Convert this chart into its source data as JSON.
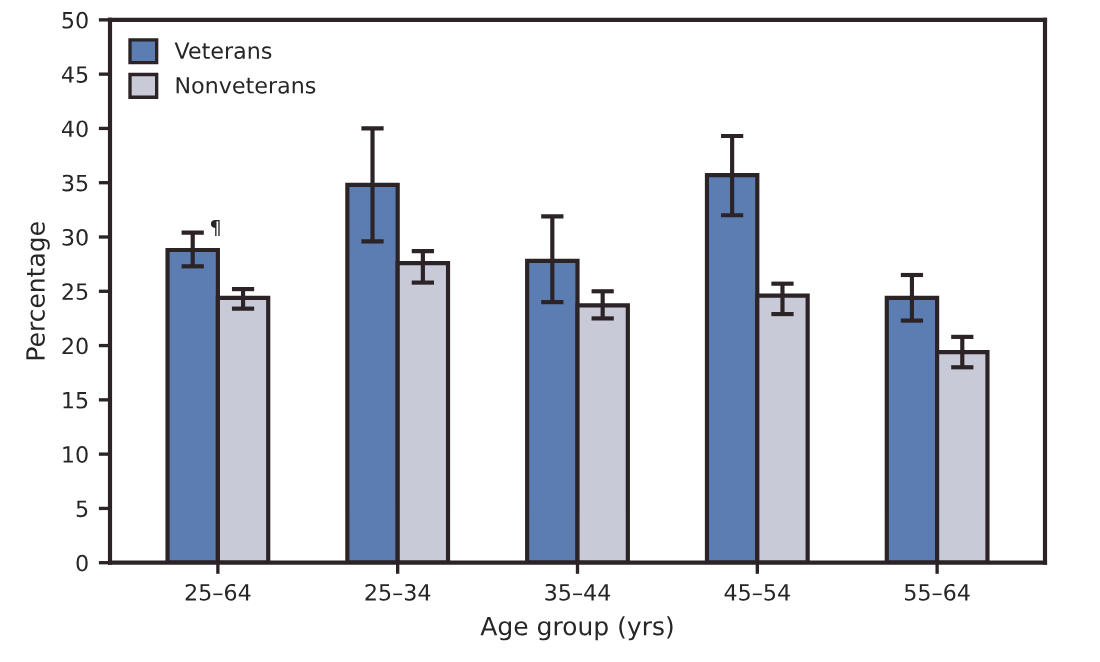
{
  "chart_data": {
    "type": "bar",
    "xlabel": "Age group (yrs)",
    "ylabel": "Percentage",
    "categories": [
      "25–64",
      "25–34",
      "35–44",
      "45–54",
      "55–64"
    ],
    "series": [
      {
        "name": "Veterans",
        "color": "#5b7db1",
        "values": [
          28.8,
          34.8,
          27.8,
          35.7,
          24.4
        ],
        "errors": [
          [
            27.3,
            30.4
          ],
          [
            29.6,
            40.0
          ],
          [
            24.0,
            31.9
          ],
          [
            32.0,
            39.3
          ],
          [
            22.3,
            26.5
          ]
        ]
      },
      {
        "name": "Nonveterans",
        "color": "#c9cad8",
        "values": [
          24.4,
          27.6,
          23.7,
          24.6,
          19.4
        ],
        "errors": [
          [
            23.4,
            25.2
          ],
          [
            25.8,
            28.7
          ],
          [
            22.5,
            25.0
          ],
          [
            22.9,
            25.7
          ],
          [
            18.0,
            20.8
          ]
        ]
      }
    ],
    "ylim": [
      0,
      50
    ],
    "yticks": [
      0,
      5,
      10,
      15,
      20,
      25,
      30,
      35,
      40,
      45,
      50
    ],
    "grid": false,
    "legend": "top left",
    "annotations": [
      "¶"
    ]
  }
}
